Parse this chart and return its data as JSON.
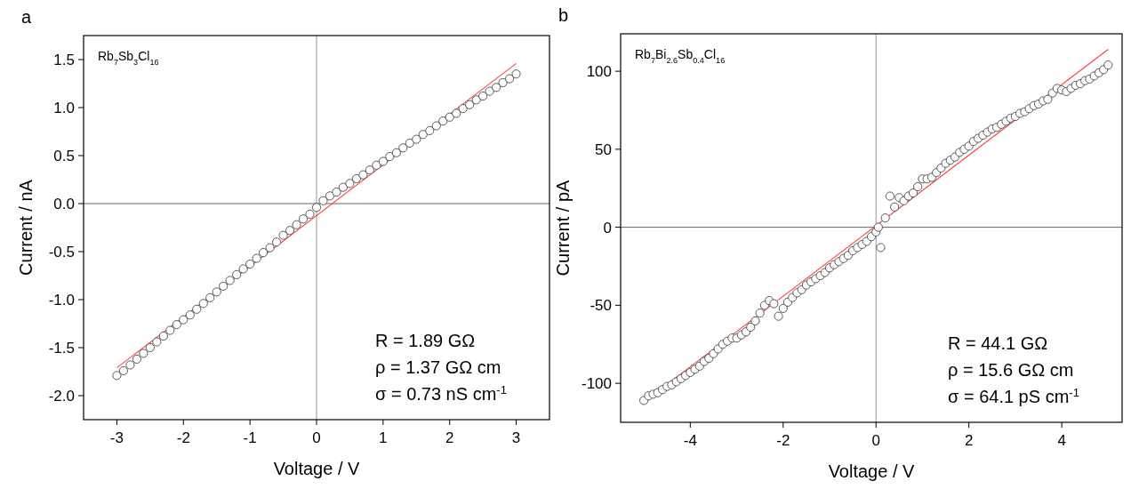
{
  "chart_data": [
    {
      "type": "scatter",
      "title": "a",
      "xlabel": "Voltage / V",
      "ylabel": "Current / nA",
      "xlim": [
        -3.5,
        3.5
      ],
      "ylim": [
        -2.25,
        1.75
      ],
      "xticks": [
        -3,
        -2,
        -1,
        0,
        1,
        2,
        3
      ],
      "yticks": [
        {
          "value": -2,
          "label": "-2.0"
        },
        -1.5,
        {
          "value": -1,
          "label": "-1.0"
        },
        -0.5,
        {
          "value": 0,
          "label": "0.0"
        },
        0.5,
        {
          "value": 1,
          "label": "1.0"
        },
        1.5
      ],
      "grid": false,
      "ref_lines": [
        {
          "axis": "x",
          "value": 0,
          "color": "#7a7a7a"
        },
        {
          "axis": "y",
          "value": 0,
          "color": "#3c3c3c"
        }
      ],
      "annotations": [
        "Rb$_{7}$Sb$_{3}$Cl$_{16}$",
        "R = 1.89 GΩ",
        "ρ = 1.37 GΩ cm",
        "σ = 0.73 nS cm$^{-1}$"
      ],
      "series": [
        {
          "type": "scatter",
          "marker": "circle",
          "color": "#333333",
          "x": [
            -3,
            -2.9,
            -2.8,
            -2.7,
            -2.6,
            -2.5,
            -2.4,
            -2.3,
            -2.2,
            -2.1,
            -2,
            -1.9,
            -1.8,
            -1.7,
            -1.6,
            -1.5,
            -1.4,
            -1.3,
            -1.2,
            -1.1,
            -1,
            -0.9,
            -0.8,
            -0.7,
            -0.6,
            -0.5,
            -0.4,
            -0.3,
            -0.2,
            -0.1,
            0,
            0.1,
            0.2,
            0.3,
            0.4,
            0.5,
            0.6,
            0.7,
            0.8,
            0.9,
            1,
            1.1,
            1.2,
            1.3,
            1.4,
            1.5,
            1.6,
            1.7,
            1.8,
            1.9,
            2,
            2.1,
            2.2,
            2.3,
            2.4,
            2.5,
            2.6,
            2.7,
            2.8,
            2.9,
            3
          ],
          "values": [
            -1.79,
            -1.74,
            -1.68,
            -1.62,
            -1.56,
            -1.5,
            -1.44,
            -1.38,
            -1.32,
            -1.26,
            -1.21,
            -1.16,
            -1.1,
            -1.04,
            -0.98,
            -0.92,
            -0.86,
            -0.8,
            -0.74,
            -0.68,
            -0.63,
            -0.57,
            -0.51,
            -0.46,
            -0.4,
            -0.33,
            -0.28,
            -0.22,
            -0.16,
            -0.11,
            -0.04,
            0.03,
            0.08,
            0.12,
            0.17,
            0.21,
            0.26,
            0.3,
            0.35,
            0.4,
            0.44,
            0.49,
            0.53,
            0.58,
            0.63,
            0.67,
            0.72,
            0.76,
            0.81,
            0.86,
            0.9,
            0.94,
            0.99,
            1.03,
            1.08,
            1.12,
            1.17,
            1.21,
            1.26,
            1.3,
            1.35
          ]
        },
        {
          "type": "line",
          "color": "#ff4040",
          "x": [
            -3,
            3
          ],
          "values": [
            -1.71,
            1.46
          ]
        }
      ]
    },
    {
      "type": "scatter",
      "title": "b",
      "xlabel": "Voltage / V",
      "ylabel": "Current / pA",
      "xlim": [
        -5.5,
        5.3
      ],
      "ylim": [
        -125,
        124
      ],
      "xticks": [
        -4,
        -2,
        0,
        2,
        4
      ],
      "yticks": [
        -100,
        -50,
        0,
        50,
        100
      ],
      "grid": false,
      "ref_lines": [
        {
          "axis": "x",
          "value": 0,
          "color": "#7a7a7a"
        },
        {
          "axis": "y",
          "value": 0,
          "color": "#3c3c3c"
        }
      ],
      "annotations": [
        "Rb$_{7}$Bi$_{2.6}$Sb$_{0.4}$Cl$_{16}$",
        "R = 44.1 GΩ",
        "ρ = 15.6 GΩ cm",
        "σ = 64.1 pS cm$^{-1}$"
      ],
      "series": [
        {
          "type": "scatter",
          "marker": "circle",
          "color": "#333333",
          "x": [
            -5,
            -4.9,
            -4.8,
            -4.7,
            -4.6,
            -4.5,
            -4.4,
            -4.3,
            -4.2,
            -4.1,
            -4,
            -3.9,
            -3.8,
            -3.7,
            -3.6,
            -3.5,
            -3.4,
            -3.3,
            -3.2,
            -3.1,
            -3,
            -2.9,
            -2.8,
            -2.7,
            -2.6,
            -2.5,
            -2.4,
            -2.3,
            -2.2,
            -2.1,
            -2,
            -1.9,
            -1.8,
            -1.7,
            -1.6,
            -1.5,
            -1.4,
            -1.3,
            -1.2,
            -1.1,
            -1,
            -0.9,
            -0.8,
            -0.7,
            -0.6,
            -0.5,
            -0.4,
            -0.3,
            -0.2,
            -0.1,
            0,
            0.05,
            0.1,
            0.2,
            0.3,
            0.4,
            0.5,
            0.6,
            0.7,
            0.8,
            0.9,
            1,
            1.1,
            1.2,
            1.3,
            1.4,
            1.5,
            1.6,
            1.7,
            1.8,
            1.9,
            2,
            2.1,
            2.2,
            2.3,
            2.4,
            2.5,
            2.6,
            2.7,
            2.8,
            2.9,
            3,
            3.1,
            3.2,
            3.3,
            3.4,
            3.5,
            3.6,
            3.7,
            3.8,
            3.9,
            4,
            4.1,
            4.2,
            4.3,
            4.4,
            4.5,
            4.6,
            4.7,
            4.8,
            4.9,
            5
          ],
          "values": [
            -111,
            -108,
            -107,
            -106,
            -104,
            -102,
            -101,
            -99,
            -97,
            -95,
            -93,
            -91,
            -89,
            -86,
            -84,
            -81,
            -78,
            -75,
            -73,
            -71,
            -71,
            -69,
            -67,
            -64,
            -60,
            -55,
            -50,
            -47,
            -49,
            -57,
            -52,
            -48,
            -45,
            -42,
            -40,
            -37,
            -35,
            -33,
            -31,
            -29,
            -26,
            -24,
            -22,
            -20,
            -18,
            -15,
            -13,
            -11,
            -9,
            -6,
            -3,
            0,
            -13,
            6,
            20,
            13,
            19,
            17,
            20,
            22,
            26,
            31,
            31,
            32,
            35,
            38,
            41,
            43,
            45,
            48,
            50,
            52,
            55,
            57,
            59,
            61,
            63,
            64,
            66,
            68,
            70,
            71,
            73,
            74,
            76,
            78,
            79,
            81,
            82,
            86,
            89,
            88,
            87,
            89,
            91,
            92,
            94,
            95,
            97,
            99,
            101,
            104
          ]
        },
        {
          "type": "line",
          "color": "#ff4040",
          "x": [
            -5,
            5
          ],
          "values": [
            -112,
            114
          ]
        }
      ]
    }
  ]
}
